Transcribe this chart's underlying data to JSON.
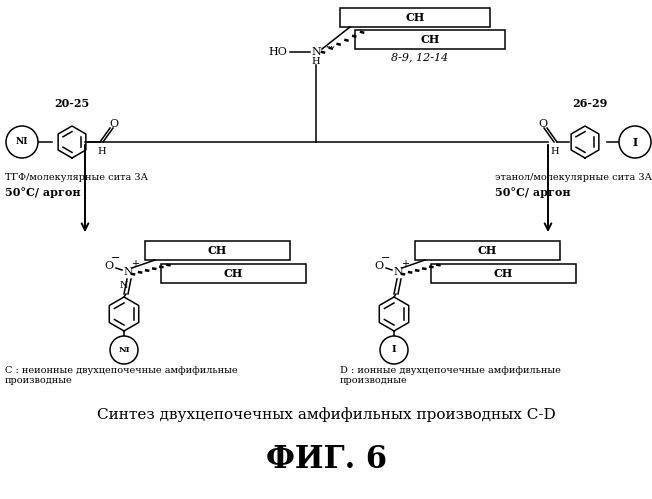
{
  "title": "Синтез двухцепочечных амфифильных производных C-D",
  "fig_label": "ФИГ. 6",
  "bg_color": "#ffffff",
  "fig_title_fontsize": 11,
  "fig_label_fontsize": 22,
  "label_20_25": "20-25",
  "label_26_29": "26-29",
  "label_8_9_12_14": "8-9, 12-14",
  "label_THF": "ТГФ/молекулярные сита 3А",
  "label_50C_left": "50°C/ аргон",
  "label_EtOH": "этанол/молекулярные сита 3А",
  "label_50C_right": "50°C/ аргон",
  "label_C": "C : неионные двухцепочечные амфифильные\nпроизводные",
  "label_D": "D : ионные двухцепочечные амфифильные\nпроизводные",
  "ni_label": "NI",
  "i_label": "I"
}
